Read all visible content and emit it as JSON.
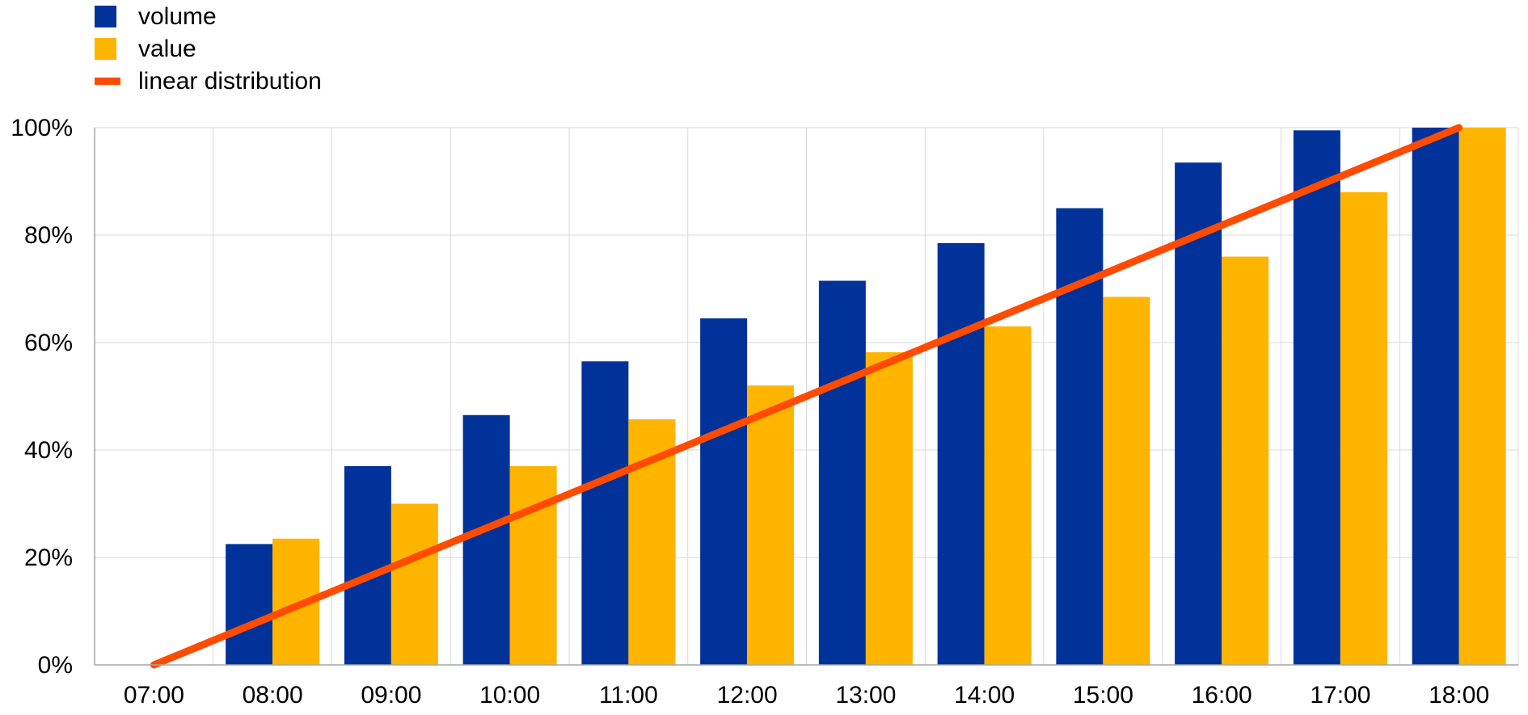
{
  "chart_data": {
    "type": "bar",
    "categories": [
      "07:00",
      "08:00",
      "09:00",
      "10:00",
      "11:00",
      "12:00",
      "13:00",
      "14:00",
      "15:00",
      "16:00",
      "17:00",
      "18:00"
    ],
    "series": [
      {
        "name": "volume",
        "kind": "bar",
        "color": "#003299",
        "values": [
          0,
          22.5,
          37,
          46.5,
          56.5,
          64.5,
          71.5,
          78.5,
          85,
          93.5,
          99.5,
          100
        ]
      },
      {
        "name": "value",
        "kind": "bar",
        "color": "#FFB400",
        "values": [
          0,
          23.5,
          30,
          37,
          45.7,
          52,
          58.2,
          63,
          68.5,
          76,
          88,
          100
        ]
      },
      {
        "name": "linear distribution",
        "kind": "line",
        "color": "#FF4B00",
        "values": [
          0,
          9.09,
          18.18,
          27.27,
          36.36,
          45.45,
          54.55,
          63.64,
          72.73,
          81.82,
          90.91,
          100
        ]
      }
    ],
    "yticks": [
      "0%",
      "20%",
      "40%",
      "60%",
      "80%",
      "100%"
    ],
    "ylim": [
      0,
      100
    ],
    "grid": true,
    "legend_position": "top-left"
  }
}
